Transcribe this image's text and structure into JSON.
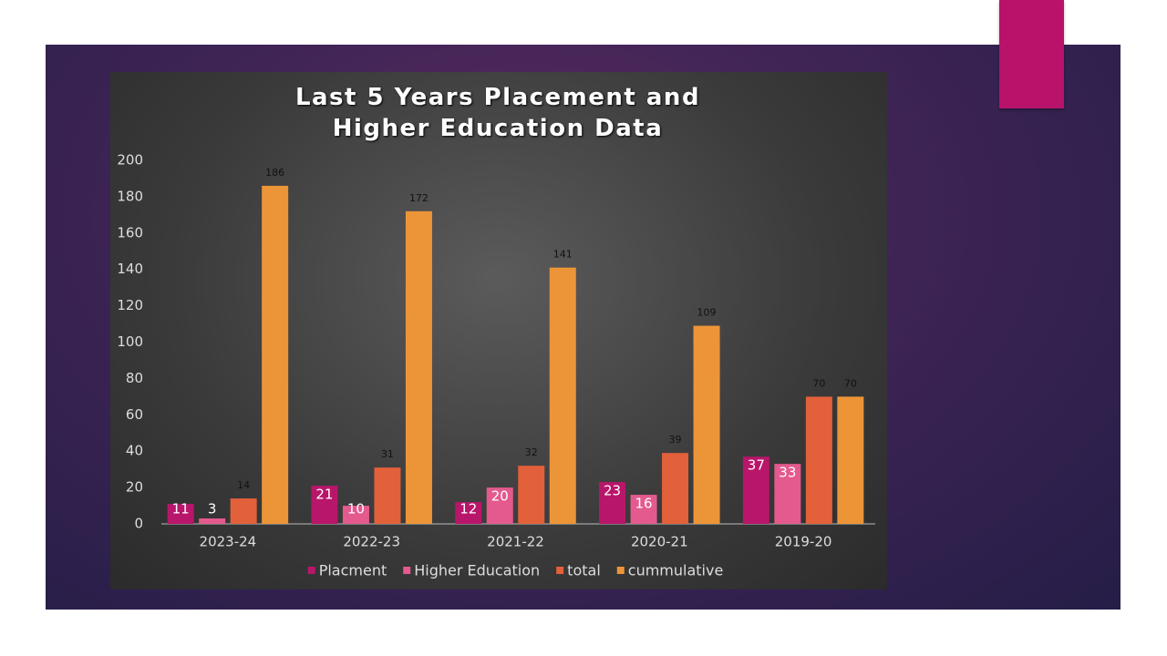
{
  "chart_data": {
    "type": "bar",
    "title": "Last 5 Years Placement and Higher Education Data",
    "categories": [
      "2023-24",
      "2022-23",
      "2021-22",
      "2020-21",
      "2019-20"
    ],
    "series": [
      {
        "name": "Placment",
        "color": "#b8166a",
        "values": [
          11,
          21,
          12,
          23,
          37
        ]
      },
      {
        "name": "Higher Education",
        "color": "#e45a8e",
        "values": [
          3,
          10,
          20,
          16,
          33
        ]
      },
      {
        "name": "total",
        "color": "#e2603a",
        "values": [
          14,
          31,
          32,
          39,
          70
        ]
      },
      {
        "name": "cummulative",
        "color": "#ec9538",
        "values": [
          186,
          172,
          141,
          109,
          70
        ]
      }
    ],
    "ylim": [
      0,
      200
    ],
    "yticks": [
      0,
      20,
      40,
      60,
      80,
      100,
      120,
      140,
      160,
      180,
      200
    ],
    "grid": false,
    "legend": "bottom"
  }
}
